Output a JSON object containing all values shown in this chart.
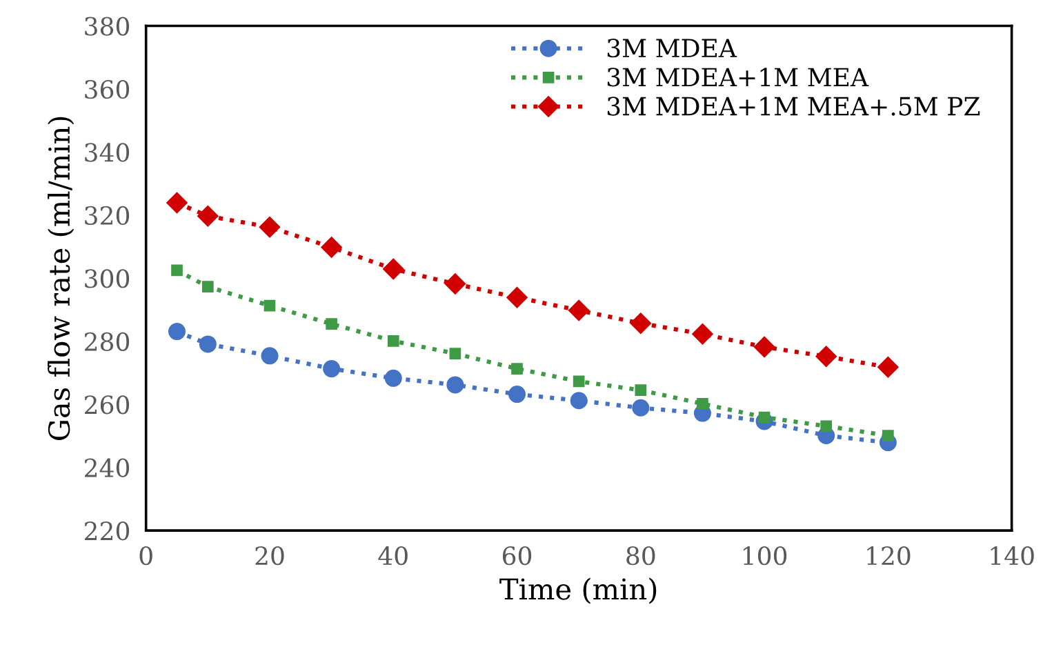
{
  "chart_data": {
    "type": "line",
    "xlabel": "Time (min)",
    "ylabel": "Gas flow rate (ml/min)",
    "x": [
      5,
      10,
      20,
      30,
      40,
      50,
      60,
      70,
      80,
      90,
      100,
      110,
      120
    ],
    "series": [
      {
        "name": "3M MDEA",
        "color": "#4472c4",
        "marker": "circle",
        "values": [
          283.1,
          279.1,
          275.4,
          271.3,
          268.3,
          266.2,
          263.2,
          261.2,
          258.9,
          257.2,
          254.6,
          250.1,
          247.9
        ]
      },
      {
        "name": "3M MDEA+1M MEA",
        "color": "#3f9a45",
        "marker": "square",
        "values": [
          302.5,
          297.3,
          291.3,
          285.5,
          280.1,
          276.1,
          271.3,
          267.3,
          264.5,
          260.2,
          255.9,
          253.1,
          250.1
        ]
      },
      {
        "name": "3M MDEA+1M MEA+.5M PZ",
        "color": "#d00000",
        "marker": "diamond",
        "values": [
          323.9,
          319.7,
          316.2,
          309.8,
          302.9,
          298.2,
          293.9,
          289.8,
          285.7,
          282.3,
          278.2,
          275.2,
          271.8
        ]
      }
    ],
    "line_style": "dotted",
    "xlim": [
      0,
      140
    ],
    "xticks": [
      0,
      20,
      40,
      60,
      80,
      100,
      120,
      140
    ],
    "ylim": [
      220,
      380
    ],
    "yticks": [
      220,
      240,
      260,
      280,
      300,
      320,
      340,
      360,
      380
    ],
    "legend": "top right",
    "grid": false
  }
}
